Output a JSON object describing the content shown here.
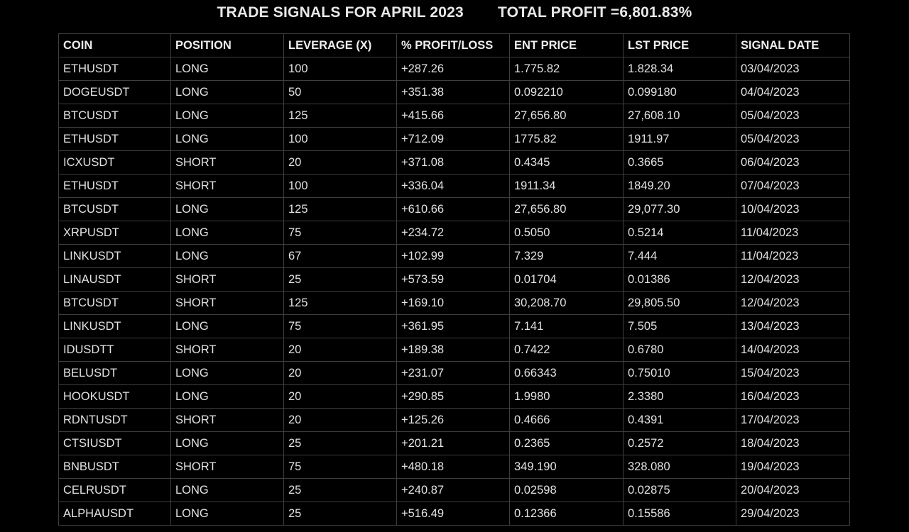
{
  "header": {
    "title": "TRADE SIGNALS FOR APRIL 2023",
    "total_profit": "TOTAL PROFIT =6,801.83%"
  },
  "table": {
    "columns": [
      "COIN",
      "POSITION",
      "LEVERAGE (X)",
      "% PROFIT/LOSS",
      "ENT PRICE",
      "LST PRICE",
      "SIGNAL DATE"
    ],
    "rows": [
      [
        "ETHUSDT",
        "LONG",
        "100",
        "+287.26",
        "1.775.82",
        "1.828.34",
        "03/04/2023"
      ],
      [
        "DOGEUSDT",
        "LONG",
        "50",
        "+351.38",
        "0.092210",
        "0.099180",
        "04/04/2023"
      ],
      [
        "BTCUSDT",
        "LONG",
        "125",
        "+415.66",
        "27,656.80",
        "27,608.10",
        "05/04/2023"
      ],
      [
        "ETHUSDT",
        "LONG",
        "100",
        "+712.09",
        "1775.82",
        "1911.97",
        "05/04/2023"
      ],
      [
        "ICXUSDT",
        "SHORT",
        "20",
        "+371.08",
        "0.4345",
        "0.3665",
        "06/04/2023"
      ],
      [
        "ETHUSDT",
        "SHORT",
        "100",
        "+336.04",
        "1911.34",
        "1849.20",
        "07/04/2023"
      ],
      [
        "BTCUSDT",
        "LONG",
        "125",
        "+610.66",
        "27,656.80",
        "29,077.30",
        "10/04/2023"
      ],
      [
        "XRPUSDT",
        "LONG",
        "75",
        "+234.72",
        "0.5050",
        "0.5214",
        "11/04/2023"
      ],
      [
        "LINKUSDT",
        "LONG",
        "67",
        "+102.99",
        "7.329",
        "7.444",
        "11/04/2023"
      ],
      [
        "LINAUSDT",
        "SHORT",
        "25",
        "+573.59",
        "0.01704",
        "0.01386",
        "12/04/2023"
      ],
      [
        "BTCUSDT",
        "SHORT",
        "125",
        "+169.10",
        "30,208.70",
        "29,805.50",
        "12/04/2023"
      ],
      [
        "LINKUSDT",
        "LONG",
        "75",
        "+361.95",
        "7.141",
        "7.505",
        "13/04/2023"
      ],
      [
        "IDUSDTT",
        "SHORT",
        "20",
        "+189.38",
        "0.7422",
        "0.6780",
        "14/04/2023"
      ],
      [
        "BELUSDT",
        "LONG",
        "20",
        "+231.07",
        "0.66343",
        "0.75010",
        "15/04/2023"
      ],
      [
        "HOOKUSDT",
        "LONG",
        "20",
        "+290.85",
        "1.9980",
        "2.3380",
        "16/04/2023"
      ],
      [
        "RDNTUSDT",
        "SHORT",
        "20",
        "+125.26",
        "0.4666",
        "0.4391",
        "17/04/2023"
      ],
      [
        "CTSIUSDT",
        "LONG",
        "25",
        "+201.21",
        "0.2365",
        "0.2572",
        "18/04/2023"
      ],
      [
        "BNBUSDT",
        "SHORT",
        "75",
        "+480.18",
        "349.190",
        "328.080",
        "19/04/2023"
      ],
      [
        "CELRUSDT",
        "LONG",
        "25",
        "+240.87",
        "0.02598",
        "0.02875",
        "20/04/2023"
      ],
      [
        "ALPHAUSDT",
        "LONG",
        "25",
        "+516.49",
        "0.12366",
        "0.15586",
        "29/04/2023"
      ]
    ]
  }
}
